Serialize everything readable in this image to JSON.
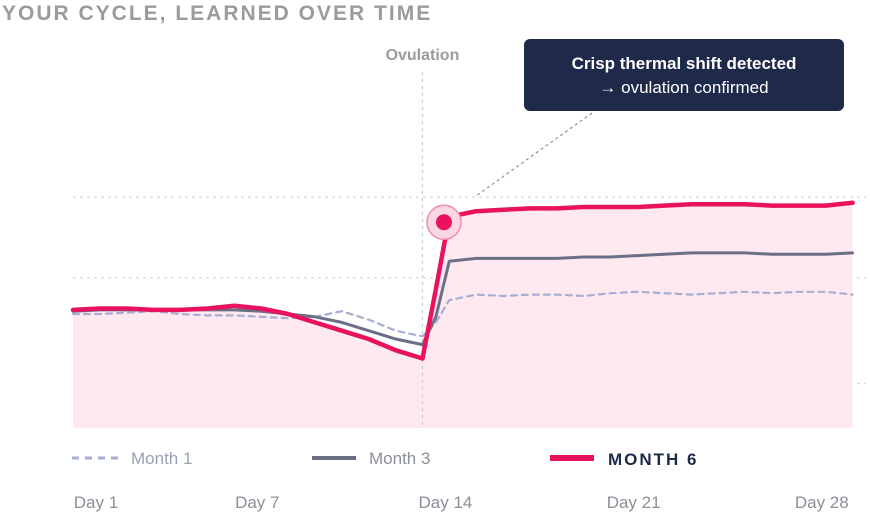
{
  "chart_data": {
    "type": "line",
    "title": "YOUR CYCLE, LEARNED OVER TIME",
    "x": [
      1,
      2,
      3,
      4,
      5,
      6,
      7,
      8,
      9,
      10,
      11,
      12,
      13,
      14,
      14.5,
      15,
      16,
      17,
      18,
      19,
      20,
      21,
      22,
      23,
      24,
      25,
      26,
      27,
      28,
      29,
      30
    ],
    "x_ticks": [
      {
        "value": 1,
        "label": "Day 1"
      },
      {
        "value": 7,
        "label": "Day 7"
      },
      {
        "value": 14,
        "label": "Day 14"
      },
      {
        "value": 21,
        "label": "Day 21"
      },
      {
        "value": 28,
        "label": "Day 28"
      }
    ],
    "xlim": [
      1,
      30.5
    ],
    "ylim": [
      0,
      100
    ],
    "grid": true,
    "legend_position": "bottom",
    "series": [
      {
        "name": "Month 1",
        "style": "dashed",
        "color": "#a7aed4",
        "values": [
          41,
          41,
          41.5,
          42,
          41,
          40.5,
          40.5,
          40,
          39.5,
          40,
          42,
          39,
          35,
          33,
          38,
          46,
          48,
          47.5,
          48,
          48,
          47.5,
          48.5,
          49,
          48.5,
          48,
          48.5,
          49,
          48.5,
          49,
          49,
          48
        ]
      },
      {
        "name": "Month 3",
        "style": "solid",
        "color": "#6b6f85",
        "values": [
          42,
          42.5,
          42.5,
          42.5,
          42.5,
          42.5,
          42.5,
          42,
          41,
          40,
          38,
          35,
          32,
          30,
          40,
          60,
          61,
          61,
          61,
          61,
          61.5,
          61.5,
          62,
          62.5,
          63,
          63,
          63,
          62.5,
          62.5,
          62.5,
          63
        ]
      },
      {
        "name": "MONTH 6",
        "style": "solid-bold",
        "color": "#e8125e",
        "values": [
          42.5,
          43,
          43,
          42.5,
          42.5,
          43,
          44,
          43,
          41,
          38,
          35,
          32,
          28,
          25,
          50,
          76,
          78,
          78.5,
          79,
          79,
          79.5,
          79.5,
          79.5,
          80,
          80.5,
          80.5,
          80.5,
          80,
          80,
          80,
          81
        ]
      }
    ],
    "marker": {
      "series": "MONTH 6",
      "x": 14.8,
      "y": 74
    },
    "vertical_line": {
      "x": 14,
      "label": "Ovulation"
    },
    "annotation": {
      "line1": "Crisp thermal shift detected",
      "line2": "→ ovulation confirmed"
    }
  },
  "colors": {
    "month6": "#e8125e",
    "month3": "#6b6f85",
    "month1": "#a7aed4",
    "fill": "#fde9ef",
    "grid": "#d5d7dd",
    "callout_bg": "#1f2a4a"
  }
}
